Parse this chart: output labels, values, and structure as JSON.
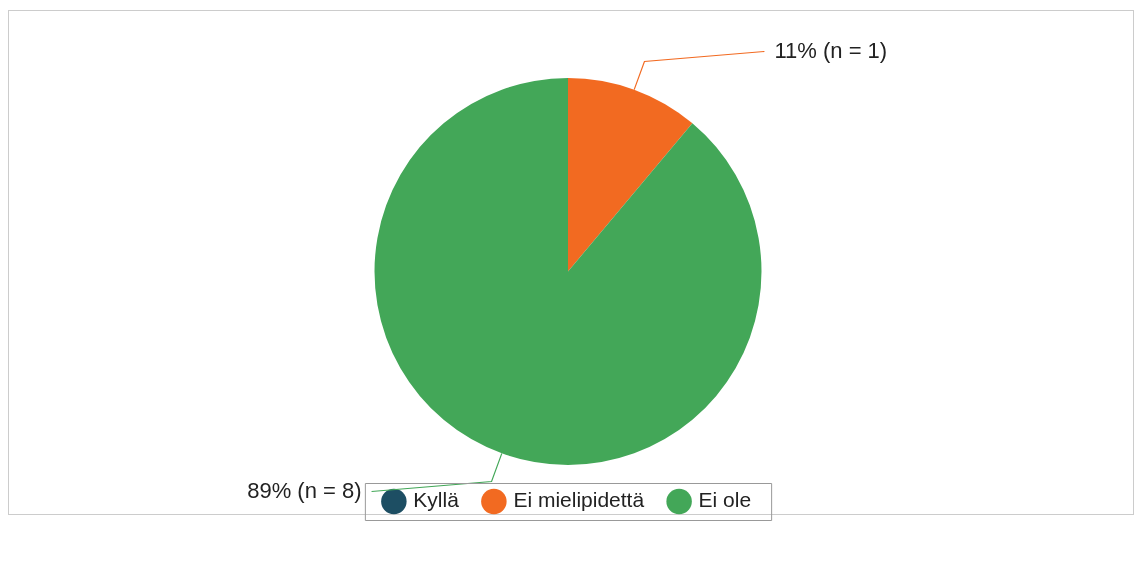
{
  "chart_data": {
    "type": "pie",
    "categories": [
      "Kyllä",
      "Ei mielipidettä",
      "Ei ole"
    ],
    "values": [
      0,
      1,
      8
    ],
    "colors": [
      "#1d4e63",
      "#f26a21",
      "#43a758"
    ],
    "value_labels": [
      null,
      "11% (n = 1)",
      "89% (n = 8)"
    ],
    "legend": "bottom"
  }
}
